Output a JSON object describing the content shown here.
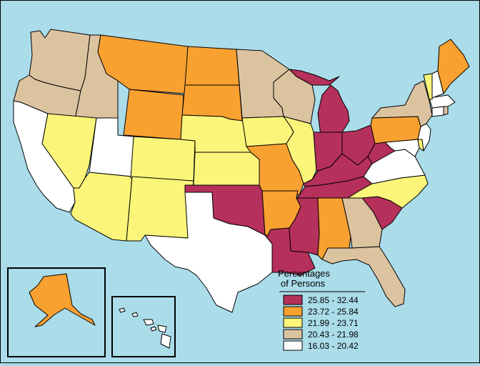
{
  "legend": {
    "title_line1": "Percentages",
    "title_line2": "of Persons",
    "classes": [
      {
        "range": "25.85 - 32.44",
        "color": "#b5305a"
      },
      {
        "range": "23.72 - 25.84",
        "color": "#f8a030"
      },
      {
        "range": "21.99 - 23.71",
        "color": "#fbf57a"
      },
      {
        "range": "20.43 - 21.98",
        "color": "#dcc3a0"
      },
      {
        "range": "16.03 - 20.42",
        "color": "#ffffff"
      }
    ]
  },
  "colors": {
    "water": "#aadcea",
    "border": "#000000"
  },
  "state_classes": {
    "WA": 3,
    "OR": 3,
    "CA": 4,
    "ID": 3,
    "NV": 2,
    "UT": 4,
    "AZ": 2,
    "MT": 1,
    "WY": 1,
    "CO": 2,
    "NM": 2,
    "ND": 1,
    "SD": 1,
    "NE": 2,
    "KS": 2,
    "OK": 0,
    "TX": 4,
    "MN": 3,
    "IA": 2,
    "MO": 1,
    "AR": 1,
    "LA": 0,
    "WI": 3,
    "IL": 2,
    "MI": 0,
    "IN": 0,
    "OH": 0,
    "KY": 0,
    "TN": 0,
    "MS": 0,
    "AL": 1,
    "GA": 3,
    "FL": 3,
    "SC": 0,
    "NC": 2,
    "VA": 4,
    "WV": 0,
    "MD": 4,
    "DE": 2,
    "PA": 1,
    "NY": 3,
    "NJ": 4,
    "CT": 4,
    "RI": 3,
    "MA": 4,
    "VT": 2,
    "NH": 4,
    "ME": 1,
    "AK": 1,
    "HI": 4
  }
}
